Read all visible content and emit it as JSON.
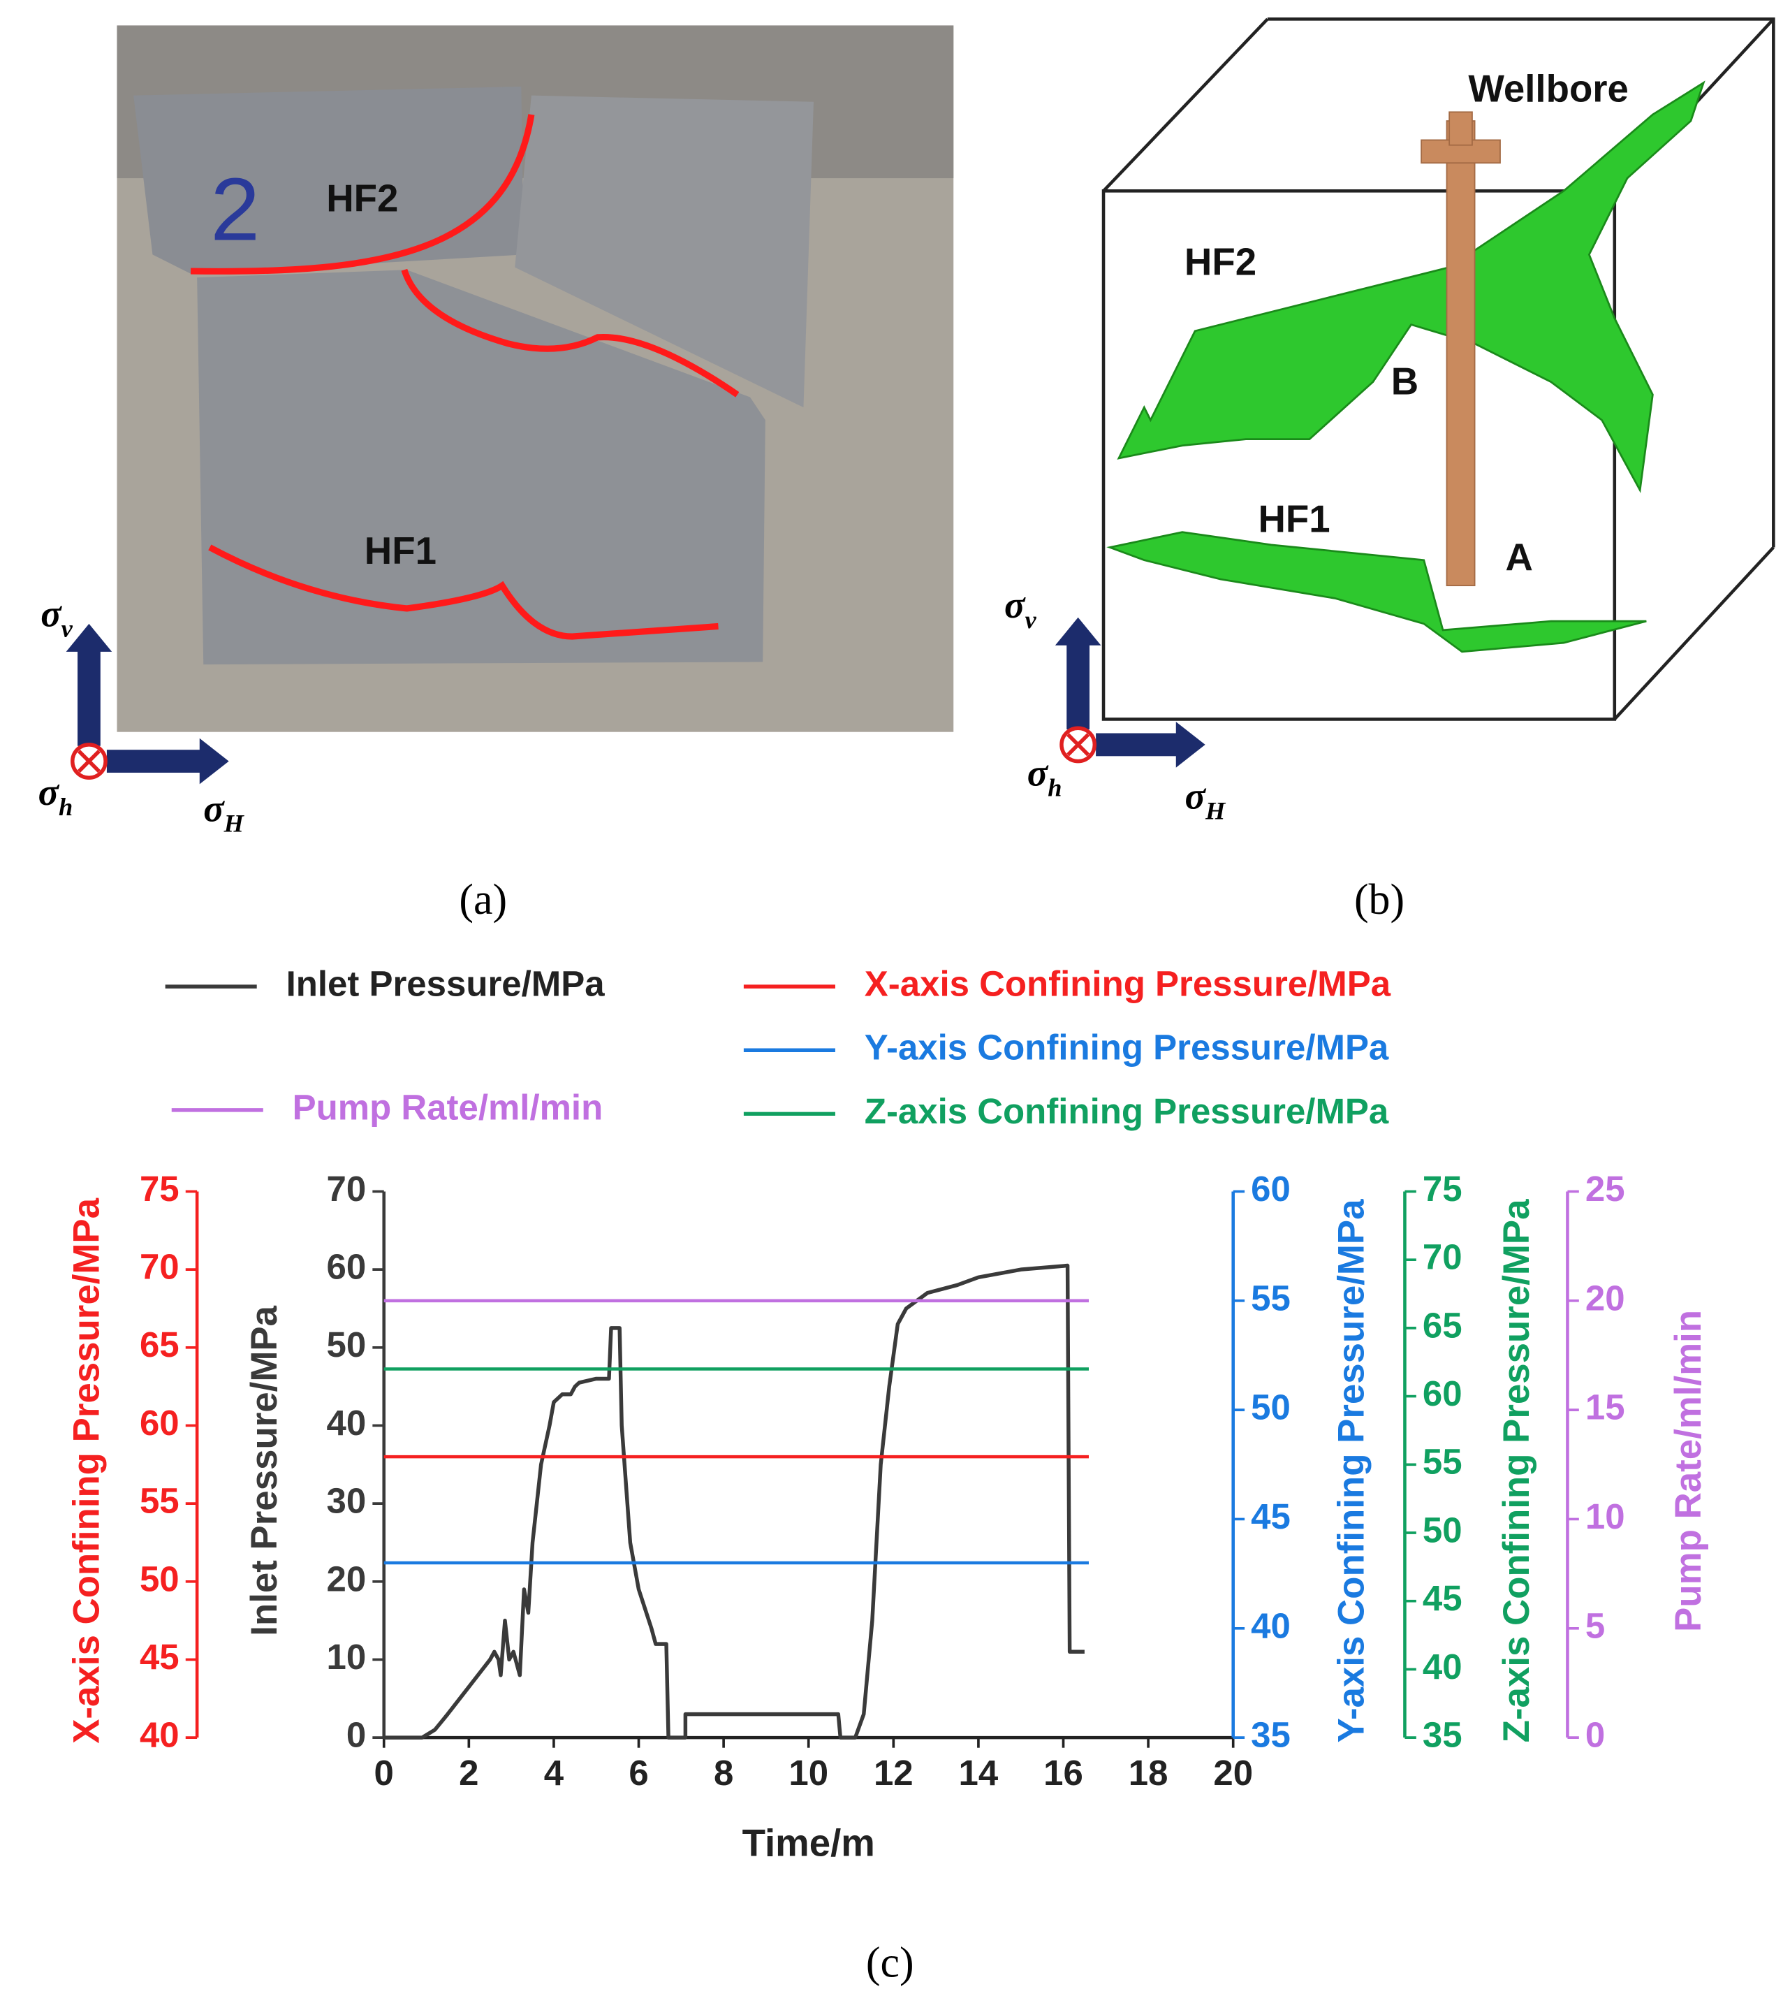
{
  "panels": {
    "a": {
      "caption": "(a)",
      "hf2": "HF2",
      "hf1": "HF1",
      "mark": "2",
      "stress": {
        "v": {
          "symbol": "σ",
          "sub": "v"
        },
        "h": {
          "symbol": "σ",
          "sub": "h"
        },
        "H": {
          "symbol": "σ",
          "sub": "H"
        }
      }
    },
    "b": {
      "caption": "(b)",
      "wellbore": "Wellbore",
      "hf2": "HF2",
      "hf1": "HF1",
      "point_b": "B",
      "point_a": "A",
      "stress": {
        "v": {
          "symbol": "σ",
          "sub": "v"
        },
        "h": {
          "symbol": "σ",
          "sub": "h"
        },
        "H": {
          "symbol": "σ",
          "sub": "H"
        }
      }
    },
    "c": {
      "caption": "(c)"
    }
  },
  "chart_data": {
    "type": "line",
    "xlabel": "Time/m",
    "xlim": [
      0,
      20
    ],
    "xticks": [
      0,
      2,
      4,
      6,
      8,
      10,
      12,
      14,
      16,
      18,
      20
    ],
    "ylabel": "Inlet Pressure/MPa",
    "ylim": [
      0,
      70
    ],
    "yticks": [
      0,
      10,
      20,
      30,
      40,
      50,
      60,
      70
    ],
    "y2label": "X-axis Confining Pressure/MPa",
    "y2lim": [
      40,
      75
    ],
    "y2ticks": [
      40,
      45,
      50,
      55,
      60,
      65,
      70,
      75
    ],
    "y3label": "Y-axis Confining Pressure/MPa",
    "y3lim": [
      35,
      60
    ],
    "y3ticks": [
      35,
      40,
      45,
      50,
      55,
      60
    ],
    "y4label": "Z-axis Confining Pressure/MPa",
    "y4lim": [
      35,
      75
    ],
    "y4ticks": [
      35,
      40,
      45,
      50,
      55,
      60,
      65,
      70,
      75
    ],
    "y5label": "Pump Rate/ml/min",
    "y5lim": [
      0,
      25
    ],
    "y5ticks": [
      0,
      5,
      10,
      15,
      20,
      25
    ],
    "series": [
      {
        "name": "Inlet Pressure/MPa",
        "color": "#3a3a3a",
        "axis": "y",
        "x": [
          0,
          0.9,
          1.2,
          1.5,
          2,
          2.5,
          2.6,
          2.7,
          2.75,
          2.85,
          2.95,
          3.05,
          3.2,
          3.3,
          3.4,
          3.5,
          3.7,
          3.9,
          4.0,
          4.2,
          4.4,
          4.5,
          4.6,
          5.0,
          5.3,
          5.35,
          5.55,
          5.6,
          5.8,
          6.0,
          6.3,
          6.4,
          6.65,
          6.7,
          7.1,
          7.1,
          10.7,
          10.75,
          11.1,
          11.3,
          11.5,
          11.7,
          11.9,
          12.1,
          12.3,
          12.8,
          13.5,
          14,
          15,
          16.1,
          16.15,
          16.5
        ],
        "values": [
          0,
          0,
          1,
          3,
          6.5,
          10,
          11,
          10,
          8,
          15,
          10,
          11,
          8,
          19,
          16,
          25,
          35,
          40,
          43,
          44,
          44,
          45,
          45.5,
          46,
          46,
          52.5,
          52.5,
          40,
          25,
          19,
          14,
          12,
          12,
          0,
          0,
          3,
          3,
          0,
          0,
          3,
          15,
          35,
          45,
          53,
          55,
          57,
          58,
          59,
          60,
          60.5,
          11,
          11
        ]
      },
      {
        "name": "X-axis Confining Pressure/MPa",
        "color": "#f52020",
        "axis": "y2",
        "x": [
          0,
          16.6
        ],
        "values": [
          58,
          58
        ]
      },
      {
        "name": "Y-axis Confining Pressure/MPa",
        "color": "#1a7ae0",
        "axis": "y3",
        "x": [
          0,
          16.6
        ],
        "values": [
          43,
          43
        ]
      },
      {
        "name": "Pump Rate/ml/min",
        "color": "#c070e0",
        "axis": "y5",
        "x": [
          0,
          16.6
        ],
        "values": [
          20,
          20
        ]
      },
      {
        "name": "Z-axis Confining Pressure/MPa",
        "color": "#10a060",
        "axis": "y4",
        "x": [
          0,
          16.6
        ],
        "values": [
          62,
          62
        ]
      }
    ]
  }
}
